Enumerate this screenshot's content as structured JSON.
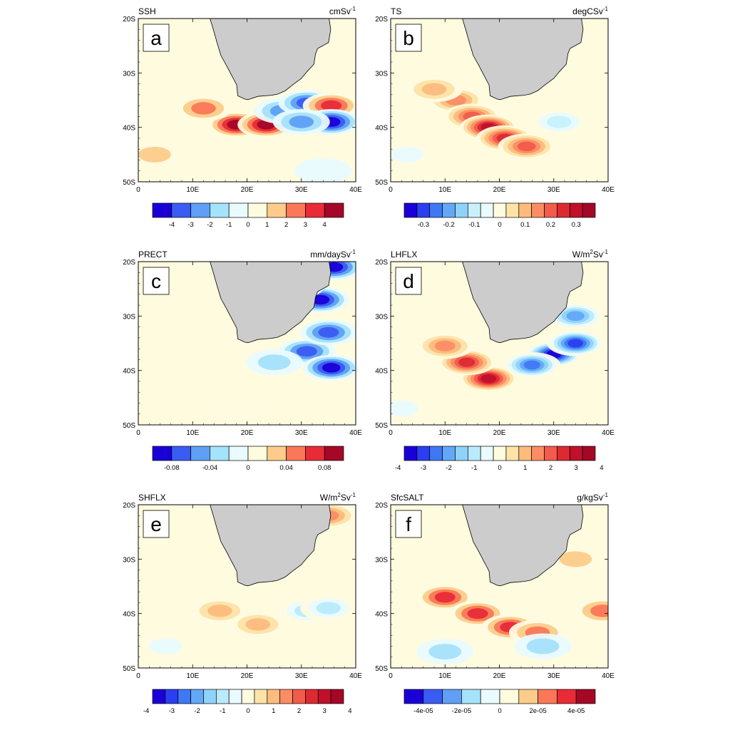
{
  "figure": {
    "panels": [
      {
        "letter": "a",
        "variable": "SSH",
        "units": "cmSv",
        "units_sup": "-1",
        "colorbar": {
          "colors": [
            "#1a00d6",
            "#3a5cf2",
            "#5f9ff5",
            "#a5e2fb",
            "#e9fbfe",
            "#fffbdf",
            "#fdcc8a",
            "#fa7758",
            "#e82b37",
            "#a50727"
          ],
          "labels": [
            "-4",
            "-3",
            "-2",
            "-1",
            "0",
            "1",
            "2",
            "3",
            "4"
          ]
        },
        "features": [
          {
            "lon": 18,
            "lat": -39.5,
            "sign": 1,
            "level": 1.0
          },
          {
            "lon": 23.5,
            "lat": -39.5,
            "sign": 1,
            "level": 1.0
          },
          {
            "lon": 12,
            "lat": -36.5,
            "sign": 1,
            "level": 0.55
          },
          {
            "lon": 26.5,
            "lat": -37,
            "sign": -1,
            "level": 0.6
          },
          {
            "lon": 31,
            "lat": -35.5,
            "sign": -1,
            "level": 0.8
          },
          {
            "lon": 35.5,
            "lat": -36,
            "sign": 1,
            "level": 0.8
          },
          {
            "lon": 35.5,
            "lat": -39,
            "sign": -1,
            "level": 0.9
          },
          {
            "lon": 30,
            "lat": -39,
            "sign": -1,
            "level": 0.55
          },
          {
            "lon": 3,
            "lat": -45,
            "sign": 1,
            "level": 0.3
          },
          {
            "lon": 34,
            "lat": -48,
            "sign": -1,
            "level": 0.25
          }
        ]
      },
      {
        "letter": "b",
        "variable": "TS",
        "units": "degCSv",
        "units_sup": "-1",
        "colorbar": {
          "colors": [
            "#1a00d6",
            "#2b3ff0",
            "#3f78f4",
            "#62a8f7",
            "#8fd2fb",
            "#c8f1fd",
            "#e9fbfe",
            "#fffbdf",
            "#fde3a7",
            "#fdbb7e",
            "#fb8d64",
            "#f35b4a",
            "#dc2a31",
            "#c0102a",
            "#a50727"
          ],
          "labels": [
            "-0.3",
            "-0.2",
            "-0.1",
            "0",
            "0.1",
            "0.2",
            "0.3"
          ]
        },
        "features": [
          {
            "lon": 12,
            "lat": -35,
            "sign": 1,
            "level": 0.55
          },
          {
            "lon": 15,
            "lat": -38,
            "sign": 1,
            "level": 0.7
          },
          {
            "lon": 18,
            "lat": -40,
            "sign": 1,
            "level": 0.9
          },
          {
            "lon": 21,
            "lat": -42,
            "sign": 1,
            "level": 0.8
          },
          {
            "lon": 25,
            "lat": -43.5,
            "sign": 1,
            "level": 0.6
          },
          {
            "lon": 8,
            "lat": -33,
            "sign": 1,
            "level": 0.4
          },
          {
            "lon": 31,
            "lat": -39,
            "sign": -1,
            "level": 0.35
          },
          {
            "lon": 3,
            "lat": -45,
            "sign": -1,
            "level": 0.2
          }
        ]
      },
      {
        "letter": "c",
        "variable": "PRECT",
        "units": "mm/daySv",
        "units_sup": "-1",
        "colorbar": {
          "colors": [
            "#1a00d6",
            "#3a5cf2",
            "#5f9ff5",
            "#a5e2fb",
            "#e9fbfe",
            "#fffbdf",
            "#fdcc8a",
            "#fa7758",
            "#e82b37",
            "#a50727"
          ],
          "labels": [
            "-0.08",
            "-0.04",
            "0",
            "0.04",
            "0.08"
          ]
        },
        "features": [
          {
            "lon": 36,
            "lat": -21,
            "sign": -1,
            "level": 1.0
          },
          {
            "lon": 33.5,
            "lat": -27,
            "sign": -1,
            "level": 0.95
          },
          {
            "lon": 29,
            "lat": -24.5,
            "sign": -1,
            "level": 0.6
          },
          {
            "lon": 31,
            "lat": -36.5,
            "sign": -1,
            "level": 0.85
          },
          {
            "lon": 35.5,
            "lat": -39.5,
            "sign": -1,
            "level": 0.9
          },
          {
            "lon": 25,
            "lat": -38.5,
            "sign": -1,
            "level": 0.4
          },
          {
            "lon": 35,
            "lat": -33,
            "sign": -1,
            "level": 0.7
          },
          {
            "lon": 18,
            "lat": -47,
            "sign": 1,
            "level": 0.25
          }
        ]
      },
      {
        "letter": "d",
        "variable": "LHFLX",
        "units": "W/m",
        "units_mid": "2",
        "units_after": "Sv",
        "units_sup": "-1",
        "colorbar": {
          "colors": [
            "#1a00d6",
            "#2b3ff0",
            "#3f78f4",
            "#62a8f7",
            "#8fd2fb",
            "#b9ebfc",
            "#e9fbfe",
            "#fffbdf",
            "#fde3a7",
            "#fdbb7e",
            "#fb8d64",
            "#f35b4a",
            "#dc2a31",
            "#c0102a",
            "#a50727"
          ],
          "labels": [
            "-4",
            "-3",
            "-2",
            "-1",
            "0",
            "1",
            "2",
            "3",
            "4"
          ]
        },
        "features": [
          {
            "lon": 30,
            "lat": -37,
            "sign": -1,
            "level": 1.0
          },
          {
            "lon": 34,
            "lat": -35,
            "sign": -1,
            "level": 0.9
          },
          {
            "lon": 26,
            "lat": -39,
            "sign": -1,
            "level": 0.8
          },
          {
            "lon": 34,
            "lat": -30,
            "sign": -1,
            "level": 0.6
          },
          {
            "lon": 18,
            "lat": -41.5,
            "sign": 1,
            "level": 0.95
          },
          {
            "lon": 14,
            "lat": -38.5,
            "sign": 1,
            "level": 0.8
          },
          {
            "lon": 10,
            "lat": -35.5,
            "sign": 1,
            "level": 0.5
          },
          {
            "lon": 2,
            "lat": -47,
            "sign": -1,
            "level": 0.3
          }
        ]
      },
      {
        "letter": "e",
        "variable": "SHFLX",
        "units": "W/m",
        "units_mid": "2",
        "units_after": "Sv",
        "units_sup": "-1",
        "colorbar": {
          "colors": [
            "#1a00d6",
            "#2b3ff0",
            "#3f78f4",
            "#62a8f7",
            "#8fd2fb",
            "#b9ebfc",
            "#e9fbfe",
            "#fffbdf",
            "#fde3a7",
            "#fdbb7e",
            "#fb8d64",
            "#f35b4a",
            "#dc2a31",
            "#c0102a",
            "#a50727"
          ],
          "labels": [
            "-4",
            "-3",
            "-2",
            "-1",
            "0",
            "1",
            "2",
            "3",
            "4"
          ]
        },
        "features": [
          {
            "lon": 35,
            "lat": -22,
            "sign": 1,
            "level": 0.55
          },
          {
            "lon": 15,
            "lat": -39.5,
            "sign": 1,
            "level": 0.4
          },
          {
            "lon": 22,
            "lat": -42,
            "sign": 1,
            "level": 0.35
          },
          {
            "lon": 31,
            "lat": -39.5,
            "sign": -1,
            "level": 0.4
          },
          {
            "lon": 35,
            "lat": -39,
            "sign": -1,
            "level": 0.35
          },
          {
            "lon": 5,
            "lat": -46,
            "sign": -1,
            "level": 0.2
          }
        ]
      },
      {
        "letter": "f",
        "variable": "SfcSALT",
        "units": "g/kgSv",
        "units_sup": "-1",
        "colorbar": {
          "colors": [
            "#1a00d6",
            "#3a5cf2",
            "#5f9ff5",
            "#a5e2fb",
            "#e9fbfe",
            "#fffbdf",
            "#fdcc8a",
            "#fa7758",
            "#e82b37",
            "#a50727"
          ],
          "labels": [
            "-4e-05",
            "-2e-05",
            "0",
            "2e-05",
            "4e-05"
          ]
        },
        "features": [
          {
            "lon": 10,
            "lat": -37,
            "sign": 1,
            "level": 0.75
          },
          {
            "lon": 16,
            "lat": -40,
            "sign": 1,
            "level": 0.75
          },
          {
            "lon": 22,
            "lat": -42.5,
            "sign": 1,
            "level": 0.7
          },
          {
            "lon": 27,
            "lat": -43.5,
            "sign": 1,
            "level": 0.6
          },
          {
            "lon": 39,
            "lat": -39.5,
            "sign": 1,
            "level": 0.65
          },
          {
            "lon": 34,
            "lat": -30,
            "sign": 1,
            "level": 0.3
          },
          {
            "lon": 10,
            "lat": -47,
            "sign": -1,
            "level": 0.4
          },
          {
            "lon": 28,
            "lat": -46,
            "sign": -1,
            "level": 0.3
          }
        ]
      }
    ],
    "axes": {
      "xticks": [
        "0",
        "10E",
        "20E",
        "30E",
        "40E"
      ],
      "yticks": [
        "20S",
        "30S",
        "40S",
        "50S"
      ],
      "lon_range": [
        0,
        40
      ],
      "lat_range": [
        -50,
        -20
      ]
    },
    "colors": {
      "land": "#cccccc",
      "frame": "#000000"
    }
  }
}
